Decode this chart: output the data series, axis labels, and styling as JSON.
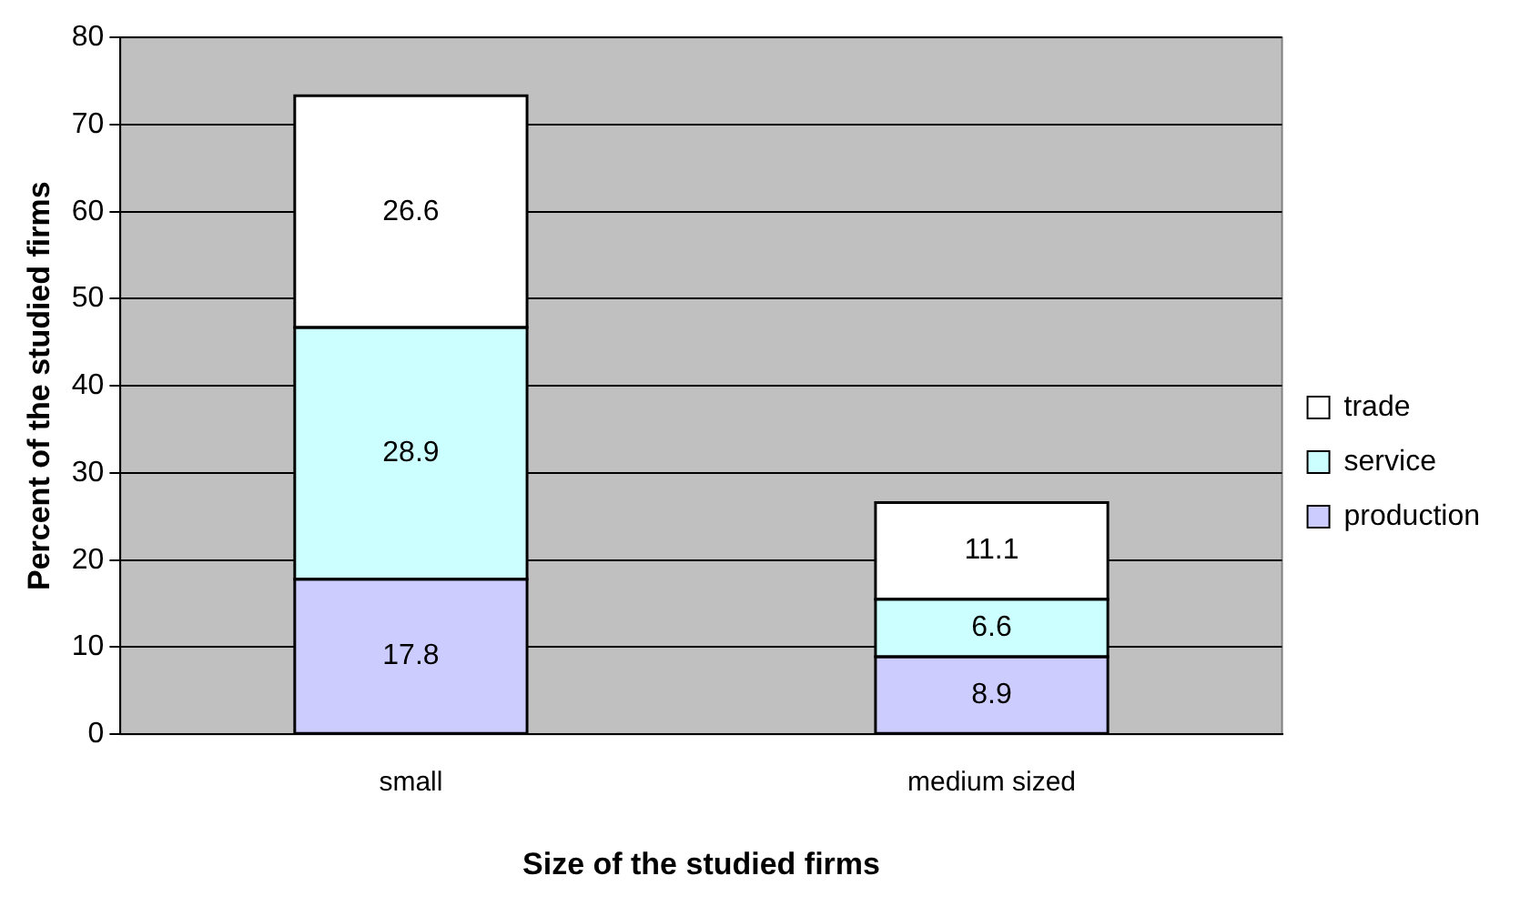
{
  "chart_data": {
    "type": "bar",
    "xlabel": "Size of the studied firms",
    "ylabel": "Percent of the studied firms",
    "categories": [
      "small",
      "medium sized"
    ],
    "series": [
      {
        "name": "production",
        "color": "#ccccff",
        "values": [
          17.8,
          8.9
        ]
      },
      {
        "name": "service",
        "color": "#ccffff",
        "values": [
          28.9,
          6.6
        ]
      },
      {
        "name": "trade",
        "color": "#ffffff",
        "values": [
          26.6,
          11.1
        ]
      }
    ],
    "stacked": true,
    "ylim": [
      0,
      80
    ],
    "yticks": [
      0,
      10,
      20,
      30,
      40,
      50,
      60,
      70,
      80
    ],
    "grid": "y",
    "legend": "right",
    "data_labels": true
  }
}
